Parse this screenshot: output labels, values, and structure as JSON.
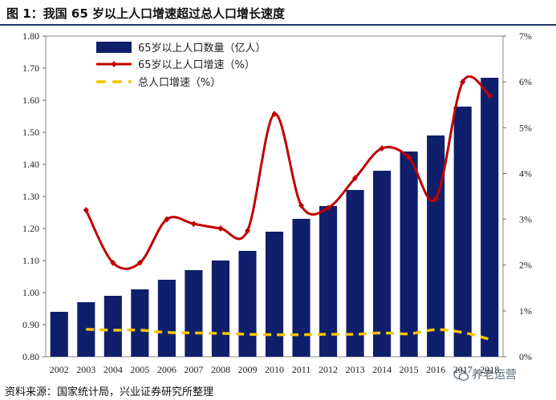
{
  "title": "图 1：我国 65 岁以上人口增速超过总人口增长速度",
  "source": "资料来源：国家统计局，兴业证券研究所整理",
  "watermark": "养老运营",
  "colors": {
    "bar": "#0f1f6b",
    "line65": "#c00000",
    "total": "#f5c400",
    "frame": "#1f3864"
  },
  "chart_data": {
    "type": "bar",
    "categories": [
      "2002",
      "2003",
      "2004",
      "2005",
      "2006",
      "2007",
      "2008",
      "2009",
      "2010",
      "2011",
      "2012",
      "2013",
      "2014",
      "2015",
      "2016",
      "2017",
      "2018"
    ],
    "y_left": {
      "range": [
        0.8,
        1.8
      ],
      "ticks": [
        "0.80",
        "0.90",
        "1.00",
        "1.10",
        "1.20",
        "1.30",
        "1.40",
        "1.50",
        "1.60",
        "1.70",
        "1.80"
      ]
    },
    "y_right": {
      "range": [
        0,
        7
      ],
      "ticks": [
        "0%",
        "1%",
        "2%",
        "3%",
        "4%",
        "5%",
        "6%",
        "7%"
      ]
    },
    "legend": [
      "65岁以上人口数量（亿人）",
      "65岁以上人口增速（%）",
      "总人口增速（%）"
    ],
    "series": [
      {
        "name": "65岁以上人口数量（亿人）",
        "type": "bar",
        "axis": "left",
        "values": [
          0.94,
          0.97,
          0.99,
          1.01,
          1.04,
          1.07,
          1.1,
          1.13,
          1.19,
          1.23,
          1.27,
          1.32,
          1.38,
          1.44,
          1.49,
          1.58,
          1.67
        ]
      },
      {
        "name": "65岁以上人口增速（%）",
        "type": "line",
        "axis": "right",
        "smooth": true,
        "x": [
          "2003",
          "2004",
          "2005",
          "2006",
          "2007",
          "2008",
          "2009",
          "2010",
          "2011",
          "2012",
          "2013",
          "2014",
          "2015",
          "2016",
          "2017",
          "2018"
        ],
        "values": [
          3.2,
          2.05,
          2.05,
          3.0,
          2.9,
          2.8,
          2.75,
          5.3,
          3.3,
          3.25,
          3.9,
          4.55,
          4.35,
          3.45,
          6.0,
          5.7
        ]
      },
      {
        "name": "总人口增速（%）",
        "type": "line",
        "axis": "right",
        "dashed": true,
        "x": [
          "2003",
          "2004",
          "2005",
          "2006",
          "2007",
          "2008",
          "2009",
          "2010",
          "2011",
          "2012",
          "2013",
          "2014",
          "2015",
          "2016",
          "2017",
          "2018"
        ],
        "values": [
          0.6,
          0.58,
          0.58,
          0.53,
          0.52,
          0.51,
          0.49,
          0.48,
          0.48,
          0.49,
          0.49,
          0.52,
          0.5,
          0.59,
          0.53,
          0.38
        ]
      }
    ]
  }
}
